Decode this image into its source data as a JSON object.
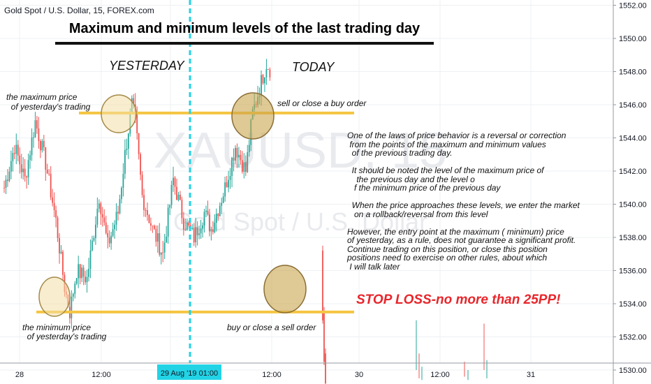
{
  "header": {
    "symbol_label": "Gold Spot / U.S. Dollar, 15, FOREX.com",
    "watermark_symbol": "XAUUSD, 15",
    "watermark_name": "Gold Spot / U.S. Dollar"
  },
  "annotations": {
    "title": "Maximum and minimum levels of the last trading day",
    "yesterday": "YESTERDAY",
    "today": "TODAY",
    "max_price": "the maximum price\n  of yesterday's trading",
    "min_price": "the minimum price\n  of yesterday's trading",
    "sell_or_close_buy": "sell or close a buy order",
    "buy_or_close_sell": "buy or close a sell order",
    "stop_loss": "STOP LOSS-no more than 25PP!",
    "explanation": "One of the laws of price behavior is a reversal or correction\n from the points of the maximum and minimum values\n  of the previous trading day.\n\n  It should be noted the level of the maximum price of\n    the previous day and the level o\n   f the minimum price of the previous day\n\n  When the price approaches these levels, we enter the market\n   on a rollback/reversal from this level\n\nHowever, the entry point at the maximum ( minimum) price\nof yesterday, as a rule, does not guarantee a significant profit.\nContinue trading on this position, or close this position\npositions need to exercise on other rules, about which\n I will talk later"
  },
  "colors": {
    "bull": "#26a69a",
    "bear": "#ef5350",
    "level_line": "#f5c542",
    "highlight_fill": "#f3dfa6",
    "session_divider": "#22d3e6",
    "stop_loss_text": "#e8262b"
  },
  "chart_data": {
    "type": "candlestick",
    "title": "Gold Spot / U.S. Dollar, 15, FOREX.com",
    "y_axis": {
      "position": "right",
      "range": [
        1529,
        1553
      ],
      "ticks": [
        "1530.00",
        "1532.00",
        "1534.00",
        "1536.00",
        "1538.00",
        "1540.00",
        "1542.00",
        "1544.00",
        "1546.00",
        "1548.00",
        "1550.00",
        "1552.00"
      ]
    },
    "x_axis": {
      "ticks": [
        "28",
        "12:00",
        "29 Aug '19",
        "12:00",
        "30",
        "12:00",
        "31"
      ],
      "highlighted_label": "29 Aug '19   01:00"
    },
    "levels": [
      {
        "name": "yesterday maximum",
        "price": 1545.5
      },
      {
        "name": "yesterday minimum",
        "price": 1533.5
      }
    ],
    "session_divider_time": "29 Aug '19 01:00",
    "grid": true,
    "candles": {
      "count": 155,
      "start_price": 1541.0,
      "anchors": [
        [
          0,
          1541.0
        ],
        [
          6,
          1543.5
        ],
        [
          12,
          1541.5
        ],
        [
          18,
          1545.0
        ],
        [
          24,
          1542.5
        ],
        [
          30,
          1539.0
        ],
        [
          35,
          1535.0
        ],
        [
          38,
          1533.5
        ],
        [
          42,
          1536.0
        ],
        [
          48,
          1535.5
        ],
        [
          55,
          1540.5
        ],
        [
          60,
          1537.5
        ],
        [
          66,
          1539.5
        ],
        [
          70,
          1543.0
        ],
        [
          74,
          1546.0
        ],
        [
          76,
          1545.0
        ],
        [
          80,
          1540.5
        ],
        [
          86,
          1538.5
        ],
        [
          92,
          1537.0
        ],
        [
          98,
          1541.5
        ],
        [
          104,
          1539.0
        ],
        [
          110,
          1538.0
        ],
        [
          116,
          1539.5
        ],
        [
          120,
          1538.5
        ],
        [
          128,
          1541.0
        ],
        [
          134,
          1543.5
        ],
        [
          140,
          1542.0
        ],
        [
          144,
          1545.5
        ],
        [
          148,
          1547.0
        ],
        [
          152,
          1548.5
        ],
        [
          155,
          1548.0
        ]
      ]
    }
  }
}
